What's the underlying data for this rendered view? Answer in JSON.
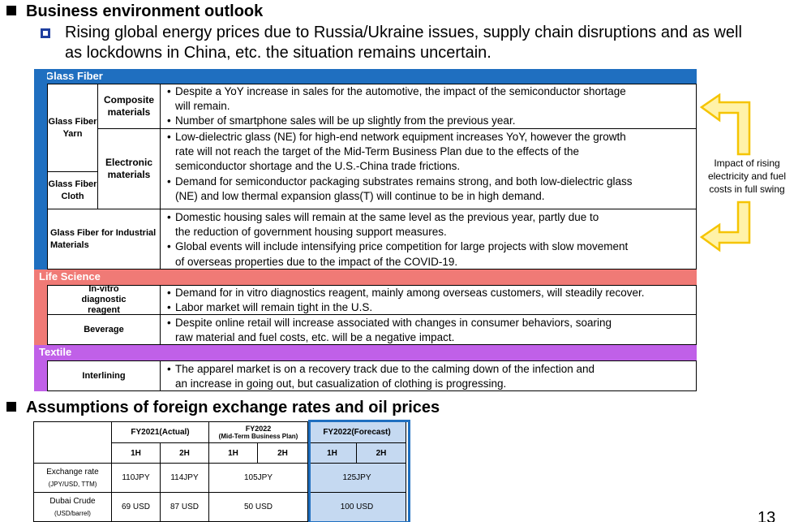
{
  "heading1": "Business environment outlook",
  "subtitle": "Rising global energy prices due to Russia/Ukraine issues, supply chain disruptions and as well as lockdowns in China, etc. the situation remains uncertain.",
  "sections": {
    "glass_fiber": {
      "title": "Glass Fiber",
      "color": "#1f6fc0",
      "yarn_label": "Glass Fiber Yarn",
      "cloth_label": "Glass Fiber Cloth",
      "composite_label": "Composite materials",
      "composite_bullets": [
        "Despite a YoY increase in sales for the automotive, the impact of the semiconductor shortage",
        "will remain.",
        "Number of smartphone sales will be up slightly from the previous year."
      ],
      "electronic_label": "Electronic materials",
      "electronic_bullets": [
        "Low-dielectric glass (NE) for high-end network equipment increases YoY, however the growth",
        "rate will not reach the target of the Mid-Term Business Plan due to the effects of the",
        "semiconductor shortage and the U.S.-China trade frictions.",
        "Demand for semiconductor packaging substrates remains strong, and both low-dielectric glass",
        "(NE) and low thermal expansion glass(T) will continue to be in high demand."
      ],
      "industrial_label": "Glass Fiber for Industrial Materials",
      "industrial_bullets": [
        "Domestic housing sales will remain at the same level as the previous year, partly due to",
        "the reduction of government housing support measures.",
        "Global events will include intensifying price competition for large projects with slow movement",
        "of overseas properties due to the impact of the COVID-19."
      ]
    },
    "life_science": {
      "title": "Life Science",
      "color": "#f07a76",
      "ivd_label": "In-vitro diagnostic reagent",
      "ivd_bullets": [
        "Demand for in vitro diagnostics reagent, mainly among overseas customers, will steadily recover.",
        "Labor market will remain tight in the U.S."
      ],
      "beverage_label": "Beverage",
      "beverage_bullets": [
        "Despite online retail will increase associated with changes in consumer behaviors,  soaring",
        "raw material and fuel costs, etc. will be a negative impact."
      ]
    },
    "textile": {
      "title": "Textile",
      "color": "#c060e8",
      "interlining_label": "Interlining",
      "interlining_bullets": [
        "The apparel market is on a recovery track due to the calming down of the infection and",
        "an increase in going out, but casualization of clothing is progressing."
      ]
    }
  },
  "impact_note": "Impact of rising electricity and fuel costs in full swing",
  "heading2": "Assumptions of foreign exchange rates and oil prices",
  "fx_table": {
    "fy2021": "FY2021(Actual)",
    "fy2022_mtbp_line1": "FY2022",
    "fy2022_mtbp_line2": "(Mid-Term Business Plan)",
    "fy2022_fc": "FY2022(Forecast)",
    "h1": "1H",
    "h2": "2H",
    "rows": [
      {
        "label": "Exchange rate",
        "sublabel": "(JPY/USD, TTM)",
        "fy21_1h": "110JPY",
        "fy21_2h": "114JPY",
        "mtbp": "105JPY",
        "forecast": "125JPY"
      },
      {
        "label": "Dubai Crude",
        "sublabel": "(USD/barrel)",
        "fy21_1h": "69 USD",
        "fy21_2h": "87 USD",
        "mtbp": "50 USD",
        "forecast": "100 USD"
      }
    ]
  },
  "page_number": "13"
}
